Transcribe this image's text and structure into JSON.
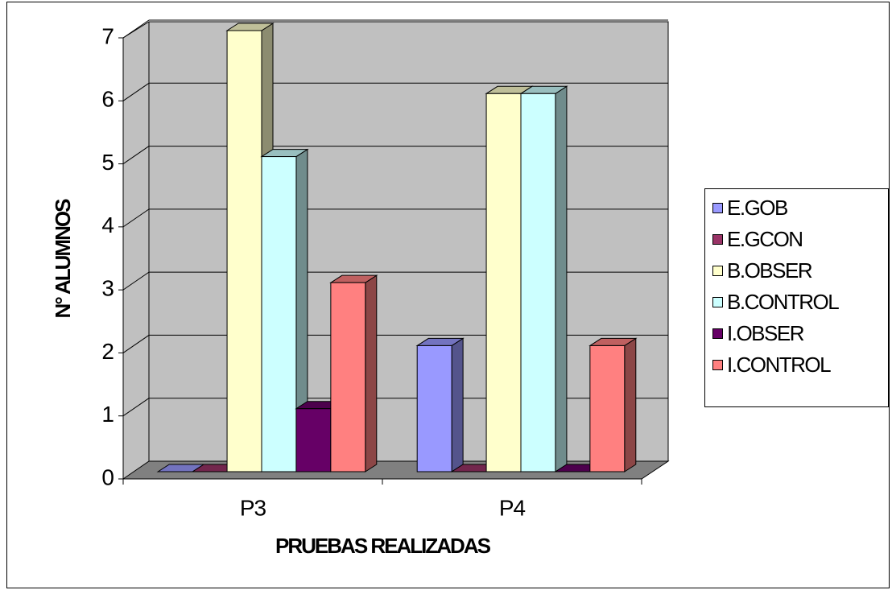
{
  "chart_data": {
    "type": "bar3d",
    "categories": [
      "P3",
      "P4"
    ],
    "series": [
      {
        "name": "E.GOB",
        "color": "#9999ff",
        "values": [
          0,
          2
        ]
      },
      {
        "name": "E.GCON",
        "color": "#993366",
        "values": [
          0,
          0
        ]
      },
      {
        "name": "B.OBSER",
        "color": "#ffffcc",
        "values": [
          7,
          6
        ]
      },
      {
        "name": "B.CONTROL",
        "color": "#ccffff",
        "values": [
          5,
          6
        ]
      },
      {
        "name": "I.OBSER",
        "color": "#660066",
        "values": [
          1,
          0
        ]
      },
      {
        "name": "I.CONTROL",
        "color": "#ff8080",
        "values": [
          3,
          2
        ]
      }
    ],
    "xlabel": "PRUEBAS REALIZADAS",
    "ylabel": "N° ALUMNOS",
    "ylim": [
      0,
      7
    ],
    "yticks": [
      0,
      1,
      2,
      3,
      4,
      5,
      6,
      7
    ],
    "grid": true,
    "legend": "right"
  }
}
